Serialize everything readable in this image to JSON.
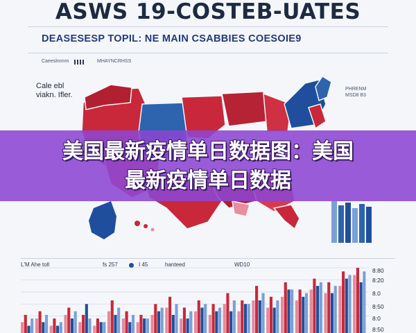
{
  "header": {
    "title": "ASWS 19-COSTEB-UATES",
    "subtitle": "DEASESESP TOPIL: NE MAIN CSABBIES COESOIE9"
  },
  "info_row": {
    "left_text": "Caeeslnnnm",
    "right_text": "MHAYNCRHSS"
  },
  "map": {
    "left_label_line1": "Cale ebl",
    "left_label_line2": "viakn. Ifler.",
    "right_label_line1": "PHRENM",
    "right_label_line2": "MSD8 B3",
    "colors": {
      "red": "#c8283a",
      "blue": "#1f4f9c",
      "light_blue": "#7aa0d6",
      "pink": "#e98da0"
    }
  },
  "banner": {
    "line1": "美国最新疫情单日数据图：美国",
    "line2": "最新疫情单日数据",
    "color": "#8c46d2"
  },
  "chart_header": {
    "title": "L'M Ahe toll",
    "stat1": "fs 257",
    "stat2": "I 45",
    "stat3": "hanteed",
    "stat4": "WD10"
  },
  "chart_data": {
    "type": "bar",
    "title": "L'M Ahe toll",
    "xlabel": "",
    "ylabel": "",
    "y_tick_labels": [
      "8:80",
      "8:20",
      "8.0",
      "8:50",
      "8:0",
      "8:50"
    ],
    "series": [
      {
        "color": "#e58a9a",
        "values": [
          3,
          4,
          2,
          5,
          3,
          2,
          6,
          4,
          3,
          5,
          7,
          4,
          6,
          5,
          8,
          6,
          9,
          7,
          10,
          9,
          12,
          11,
          13,
          16
        ]
      },
      {
        "color": "#c8283a",
        "values": [
          5,
          6,
          4,
          7,
          5,
          4,
          9,
          6,
          5,
          8,
          10,
          7,
          9,
          8,
          11,
          9,
          13,
          10,
          14,
          12,
          15,
          14,
          17,
          18
        ]
      },
      {
        "color": "#1f4f9c",
        "values": [
          2,
          3,
          2,
          4,
          8,
          3,
          5,
          3,
          4,
          6,
          5,
          4,
          7,
          6,
          6,
          8,
          9,
          7,
          12,
          10,
          13,
          11,
          15,
          14
        ]
      },
      {
        "color": "#7aa0d6",
        "values": [
          4,
          5,
          3,
          6,
          4,
          3,
          7,
          5,
          4,
          7,
          8,
          6,
          8,
          7,
          9,
          8,
          11,
          9,
          12,
          11,
          14,
          13,
          16,
          17
        ]
      }
    ]
  }
}
